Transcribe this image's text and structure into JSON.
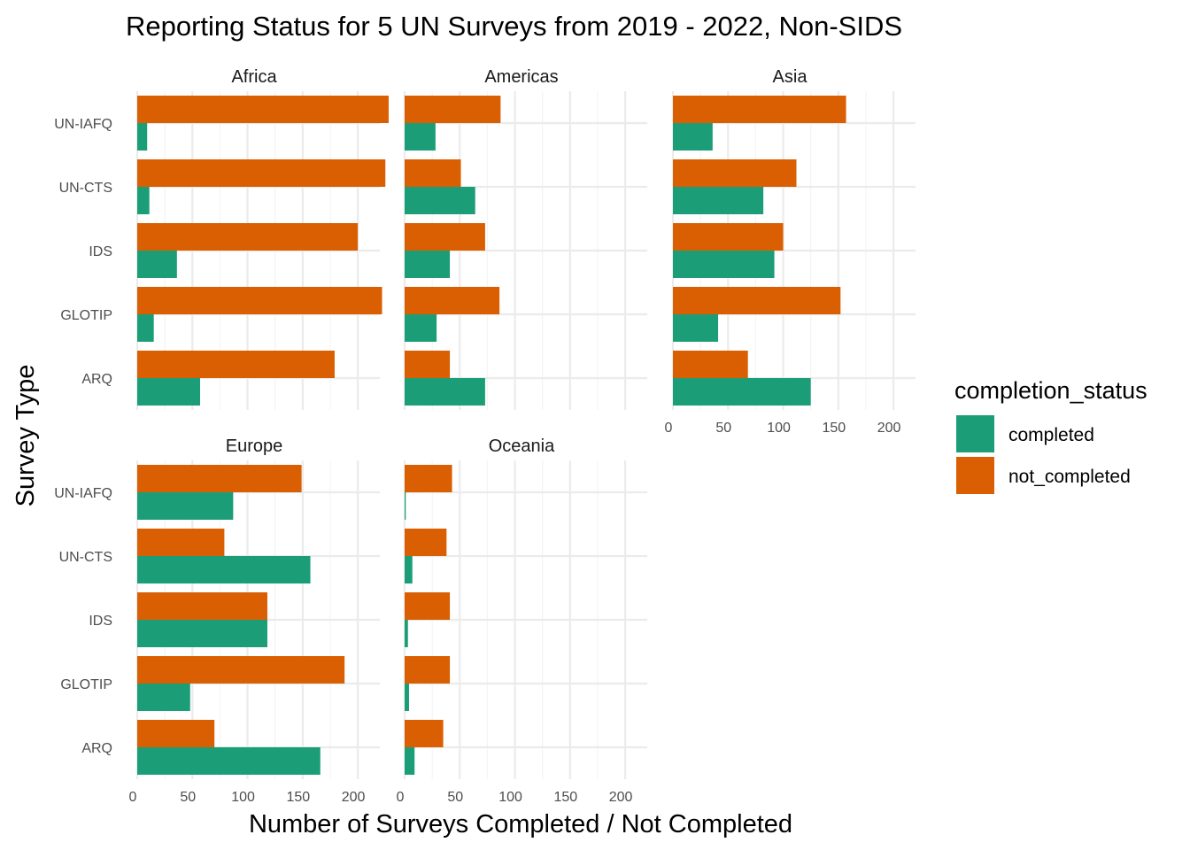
{
  "chart_data": {
    "type": "bar",
    "orientation": "horizontal",
    "title": "Reporting Status for 5 UN Surveys from 2019 - 2022, Non-SIDS",
    "xlabel": "Number of Surveys Completed / Not Completed",
    "ylabel": "Survey Type",
    "xlim": [
      0,
      220
    ],
    "x_ticks": [
      0,
      50,
      100,
      150,
      200
    ],
    "categories": [
      "UN-IAFQ",
      "UN-CTS",
      "IDS",
      "GLOTIP",
      "ARQ"
    ],
    "legend": {
      "title": "completion_status",
      "position": "right",
      "items": [
        {
          "name": "completed",
          "color": "#1b9e77"
        },
        {
          "name": "not_completed",
          "color": "#d95f02"
        }
      ]
    },
    "grid": true,
    "facets": [
      {
        "name": "Africa",
        "series": [
          {
            "name": "completed",
            "values": [
              9,
              11,
              36,
              15,
              57
            ]
          },
          {
            "name": "not_completed",
            "values": [
              228,
              225,
              200,
              222,
              179
            ]
          }
        ]
      },
      {
        "name": "Americas",
        "series": [
          {
            "name": "completed",
            "values": [
              28,
              64,
              41,
              29,
              73
            ]
          },
          {
            "name": "not_completed",
            "values": [
              87,
              51,
              73,
              86,
              41
            ]
          }
        ]
      },
      {
        "name": "Asia",
        "series": [
          {
            "name": "completed",
            "values": [
              36,
              82,
              92,
              41,
              125
            ]
          },
          {
            "name": "not_completed",
            "values": [
              157,
              112,
              100,
              152,
              68
            ]
          }
        ]
      },
      {
        "name": "Europe",
        "series": [
          {
            "name": "completed",
            "values": [
              87,
              157,
              118,
              48,
              166
            ]
          },
          {
            "name": "not_completed",
            "values": [
              149,
              79,
              118,
              188,
              70
            ]
          }
        ]
      },
      {
        "name": "Oceania",
        "series": [
          {
            "name": "completed",
            "values": [
              1,
              7,
              3,
              4,
              9
            ]
          },
          {
            "name": "not_completed",
            "values": [
              43,
              38,
              41,
              41,
              35
            ]
          }
        ]
      }
    ]
  }
}
